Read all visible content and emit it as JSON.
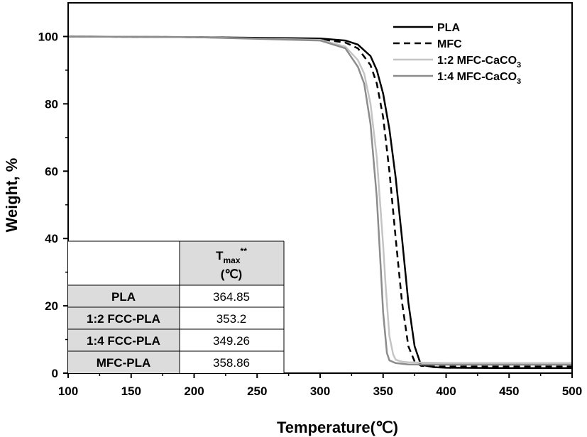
{
  "chart_data": {
    "type": "line",
    "xlabel": "Temperature(℃)",
    "ylabel": "Weight, %",
    "xlim": [
      100,
      500
    ],
    "ylim": [
      0,
      110
    ],
    "xticks": [
      100,
      150,
      200,
      250,
      300,
      350,
      400,
      450,
      500
    ],
    "yticks": [
      0,
      20,
      40,
      60,
      80,
      100
    ],
    "grid": false,
    "legend_position": "top-right",
    "series": [
      {
        "name": "PLA",
        "color": "#000000",
        "dash": "solid",
        "x": [
          100,
          200,
          300,
          320,
          330,
          340,
          345,
          350,
          355,
          360,
          365,
          370,
          375,
          380,
          390,
          400,
          450,
          500
        ],
        "y": [
          100,
          99.8,
          99.4,
          98.8,
          97.6,
          94.2,
          90.0,
          83.0,
          72.5,
          58.0,
          40.0,
          21.0,
          8.0,
          2.5,
          1.8,
          1.6,
          1.5,
          1.5
        ]
      },
      {
        "name": "MFC",
        "color": "#000000",
        "dash": "dashed",
        "x": [
          100,
          200,
          300,
          320,
          330,
          340,
          345,
          350,
          355,
          360,
          365,
          370,
          375,
          380,
          390,
          400,
          450,
          500
        ],
        "y": [
          100,
          99.8,
          99.2,
          98.2,
          96.5,
          91.5,
          86.0,
          76.0,
          60.0,
          40.0,
          21.0,
          8.0,
          3.5,
          2.2,
          2.0,
          2.0,
          2.0,
          2.0
        ]
      },
      {
        "name": "1:2 MFC-CaCO3",
        "label_main": "1:2 MFC-CaCO",
        "label_sub": "3",
        "color": "#c4c4c4",
        "dash": "solid",
        "x": [
          100,
          200,
          300,
          320,
          330,
          335,
          340,
          345,
          350,
          352,
          355,
          358,
          360,
          365,
          370,
          400,
          450,
          500
        ],
        "y": [
          100,
          99.8,
          99.0,
          97.0,
          93.0,
          89.0,
          80.0,
          64.0,
          38.0,
          26.0,
          11.0,
          5.5,
          4.0,
          3.4,
          3.2,
          3.0,
          3.0,
          3.0
        ]
      },
      {
        "name": "1:4 MFC-CaCO3",
        "label_main": "1:4 MFC-CaCO",
        "label_sub": "3",
        "color": "#8c8c8c",
        "dash": "solid",
        "x": [
          100,
          200,
          300,
          320,
          330,
          335,
          340,
          345,
          348,
          350,
          353,
          355,
          360,
          365,
          370,
          400,
          450,
          500
        ],
        "y": [
          100,
          99.8,
          98.8,
          96.5,
          91.0,
          86.0,
          74.0,
          52.0,
          32.0,
          18.0,
          6.0,
          3.8,
          3.0,
          2.8,
          2.6,
          2.5,
          2.5,
          2.5
        ]
      }
    ],
    "table": {
      "header_main": "T",
      "header_sub": "max",
      "header_sup": "**",
      "header_unit": "(℃)",
      "rows": [
        {
          "label": "PLA",
          "value": "364.85"
        },
        {
          "label": "1:2 FCC-PLA",
          "value": "353.2"
        },
        {
          "label": "1:4 FCC-PLA",
          "value": "349.26"
        },
        {
          "label": "MFC-PLA",
          "value": "358.86"
        }
      ]
    }
  }
}
